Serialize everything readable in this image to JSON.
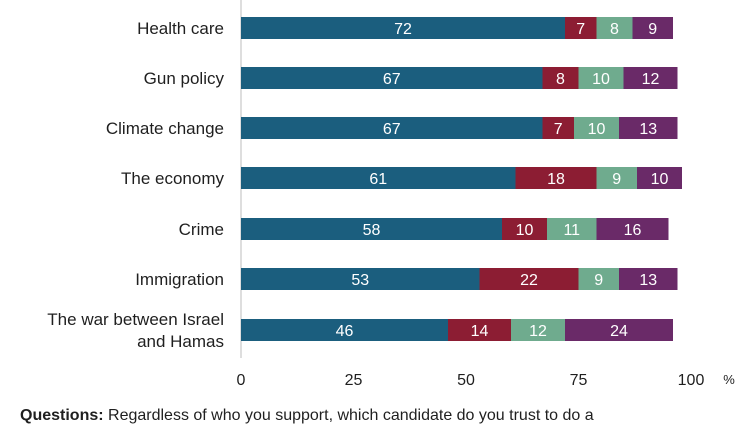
{
  "chart_data": {
    "type": "bar",
    "orientation": "horizontal",
    "stacked": true,
    "categories": [
      "Health care",
      "Gun policy",
      "Climate change",
      "The economy",
      "Crime",
      "Immigration",
      "The war between Israel and Hamas"
    ],
    "series": [
      {
        "values": [
          72,
          67,
          67,
          61,
          58,
          53,
          46
        ],
        "color": "#1b5e7e"
      },
      {
        "values": [
          7,
          8,
          7,
          18,
          10,
          22,
          14
        ],
        "color": "#8c1d33"
      },
      {
        "values": [
          8,
          10,
          10,
          9,
          11,
          9,
          12
        ],
        "color": "#6fab8e"
      },
      {
        "values": [
          9,
          12,
          13,
          10,
          16,
          13,
          24
        ],
        "color": "#6a2a68"
      }
    ],
    "xlim": [
      0,
      100
    ],
    "xticks": [
      "0",
      "25",
      "50",
      "75",
      "100"
    ],
    "x_unit": "%",
    "grid": false
  },
  "footnote": {
    "label": "Questions:",
    "text": " Regardless of who you support, which candidate do you trust to do a"
  }
}
